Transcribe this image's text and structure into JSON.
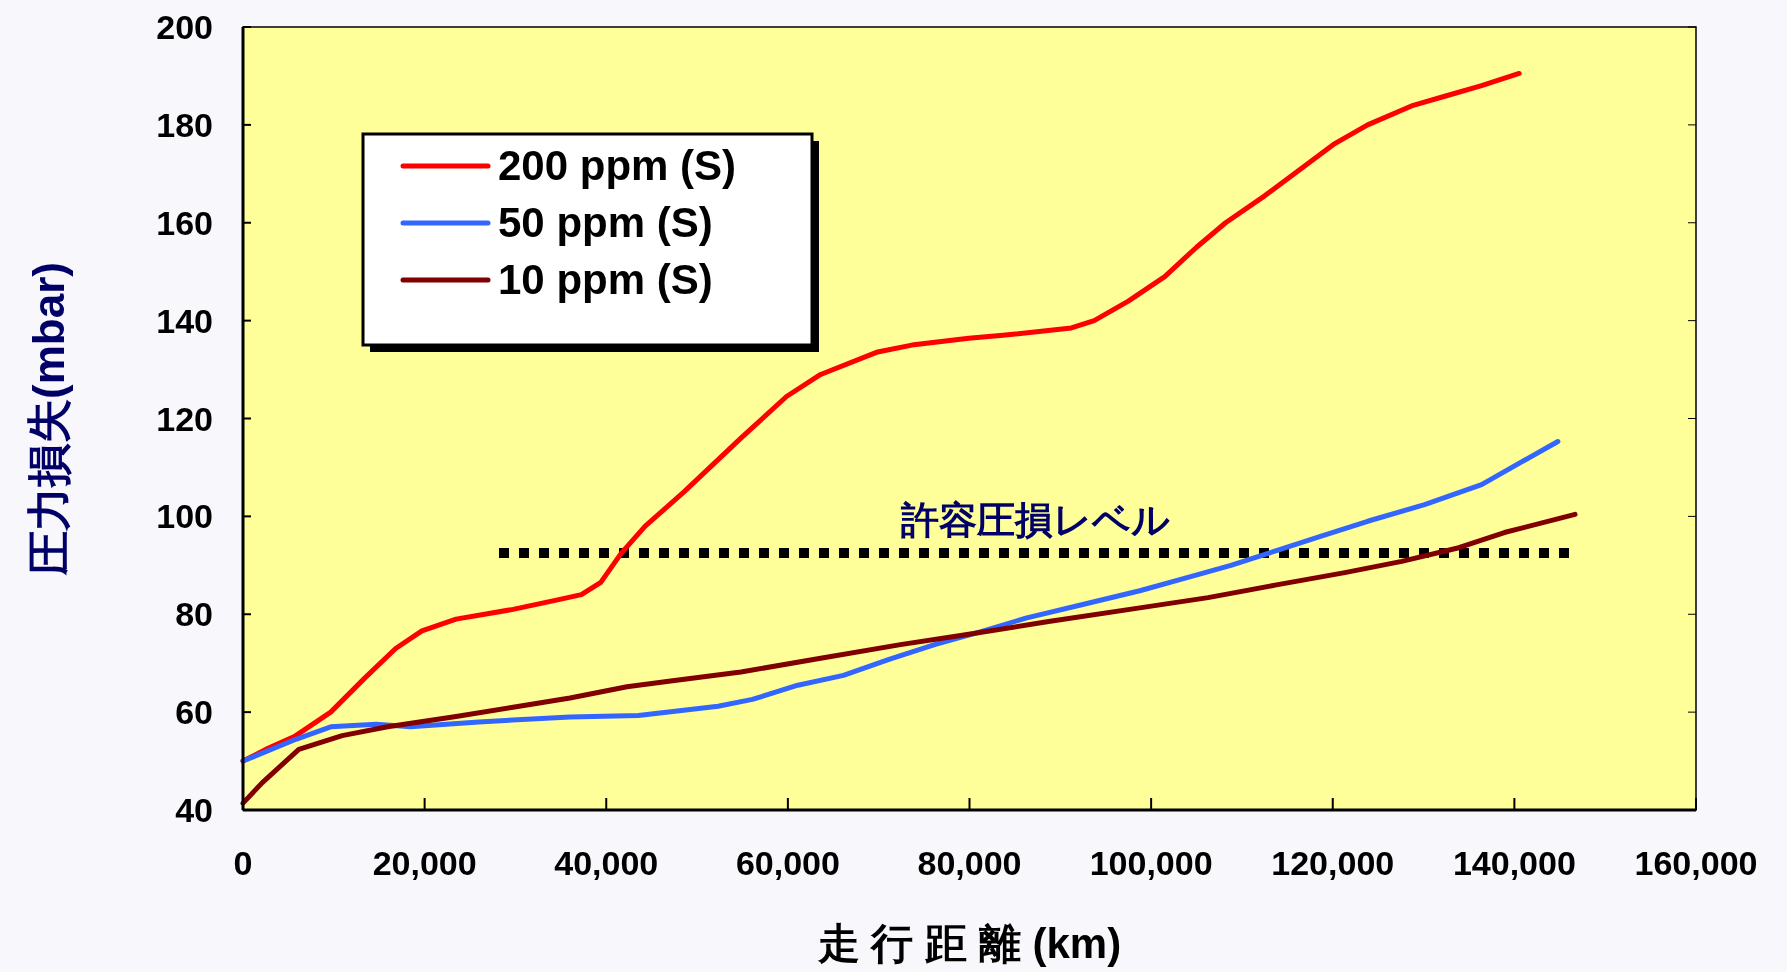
{
  "chart_data": {
    "type": "line",
    "xlabel": "走 行 距 離  (km)",
    "ylabel": "圧力損失(mbar)",
    "xlim": [
      0,
      160000
    ],
    "ylim": [
      40,
      200
    ],
    "xticks": [
      0,
      {
        "value": 20000,
        "label": "20,000"
      },
      {
        "value": 40000,
        "label": "40,000"
      },
      {
        "value": 60000,
        "label": "60,000"
      },
      {
        "value": 80000,
        "label": "80,000"
      },
      {
        "value": 100000,
        "label": "100,000"
      },
      {
        "value": 120000,
        "label": "120,000"
      },
      {
        "value": 140000,
        "label": "140,000"
      },
      {
        "value": 160000,
        "label": "160,000"
      }
    ],
    "yticks": [
      40,
      60,
      80,
      100,
      120,
      140,
      160,
      180,
      200
    ],
    "legend": "top left",
    "line_style": "solid",
    "series": [
      {
        "name": "200 ppm (S)",
        "color": "#ff0000",
        "x": [
          0,
          2760,
          5650,
          9660,
          13430,
          16810,
          19700,
          23460,
          26600,
          29740,
          34760,
          37260,
          39400,
          41660,
          44290,
          48560,
          54830,
          59850,
          63610,
          69890,
          73650,
          79920,
          83690,
          91220,
          93730,
          97490,
          101500,
          105000,
          108200,
          112500,
          120080,
          123840,
          128860,
          132620,
          136390,
          140530
        ],
        "values": [
          50,
          52.6,
          55,
          60,
          67,
          73,
          76.6,
          79,
          80,
          81,
          83,
          84,
          86.5,
          92.5,
          98,
          105,
          116,
          124.5,
          129,
          133.6,
          135,
          136.4,
          137,
          138.5,
          140,
          144,
          149,
          155,
          160,
          165.5,
          176,
          180,
          184,
          186,
          188,
          190.5
        ]
      },
      {
        "name": "50 ppm (S)",
        "color": "#3366ff",
        "x": [
          0,
          5900,
          9660,
          14680,
          18440,
          25970,
          36010,
          43540,
          52320,
          56090,
          61100,
          66120,
          71140,
          76160,
          81180,
          86200,
          92470,
          98750,
          103760,
          108780,
          113800,
          118820,
          123840,
          130110,
          136390,
          144790
        ],
        "values": [
          50,
          54.5,
          57,
          57.5,
          57,
          58,
          59,
          59.3,
          61.2,
          62.6,
          65.5,
          67.5,
          70.8,
          73.8,
          76.4,
          79.2,
          82,
          84.8,
          87.4,
          90,
          93,
          96,
          99,
          102.4,
          106.5,
          115.3
        ]
      },
      {
        "name": "10 ppm (S)",
        "color": "#800000",
        "x": [
          0,
          2130,
          6150,
          10920,
          15930,
          23460,
          29740,
          36010,
          42280,
          47300,
          54830,
          63610,
          72400,
          79920,
          88710,
          98750,
          106270,
          113800,
          121330,
          127600,
          133880,
          138900,
          146680
        ],
        "values": [
          41.4,
          45.6,
          52.4,
          55.2,
          57,
          59.1,
          61,
          62.9,
          65.2,
          66.4,
          68.2,
          71,
          73.8,
          75.9,
          78.5,
          81.3,
          83.4,
          86,
          88.5,
          90.8,
          93.6,
          96.7,
          100.4
        ]
      }
    ],
    "ref_lines": [
      {
        "axis": "y",
        "value": 92.5,
        "label": "許容圧損レベル",
        "color": "#000000",
        "line_style": "dotted"
      }
    ]
  }
}
